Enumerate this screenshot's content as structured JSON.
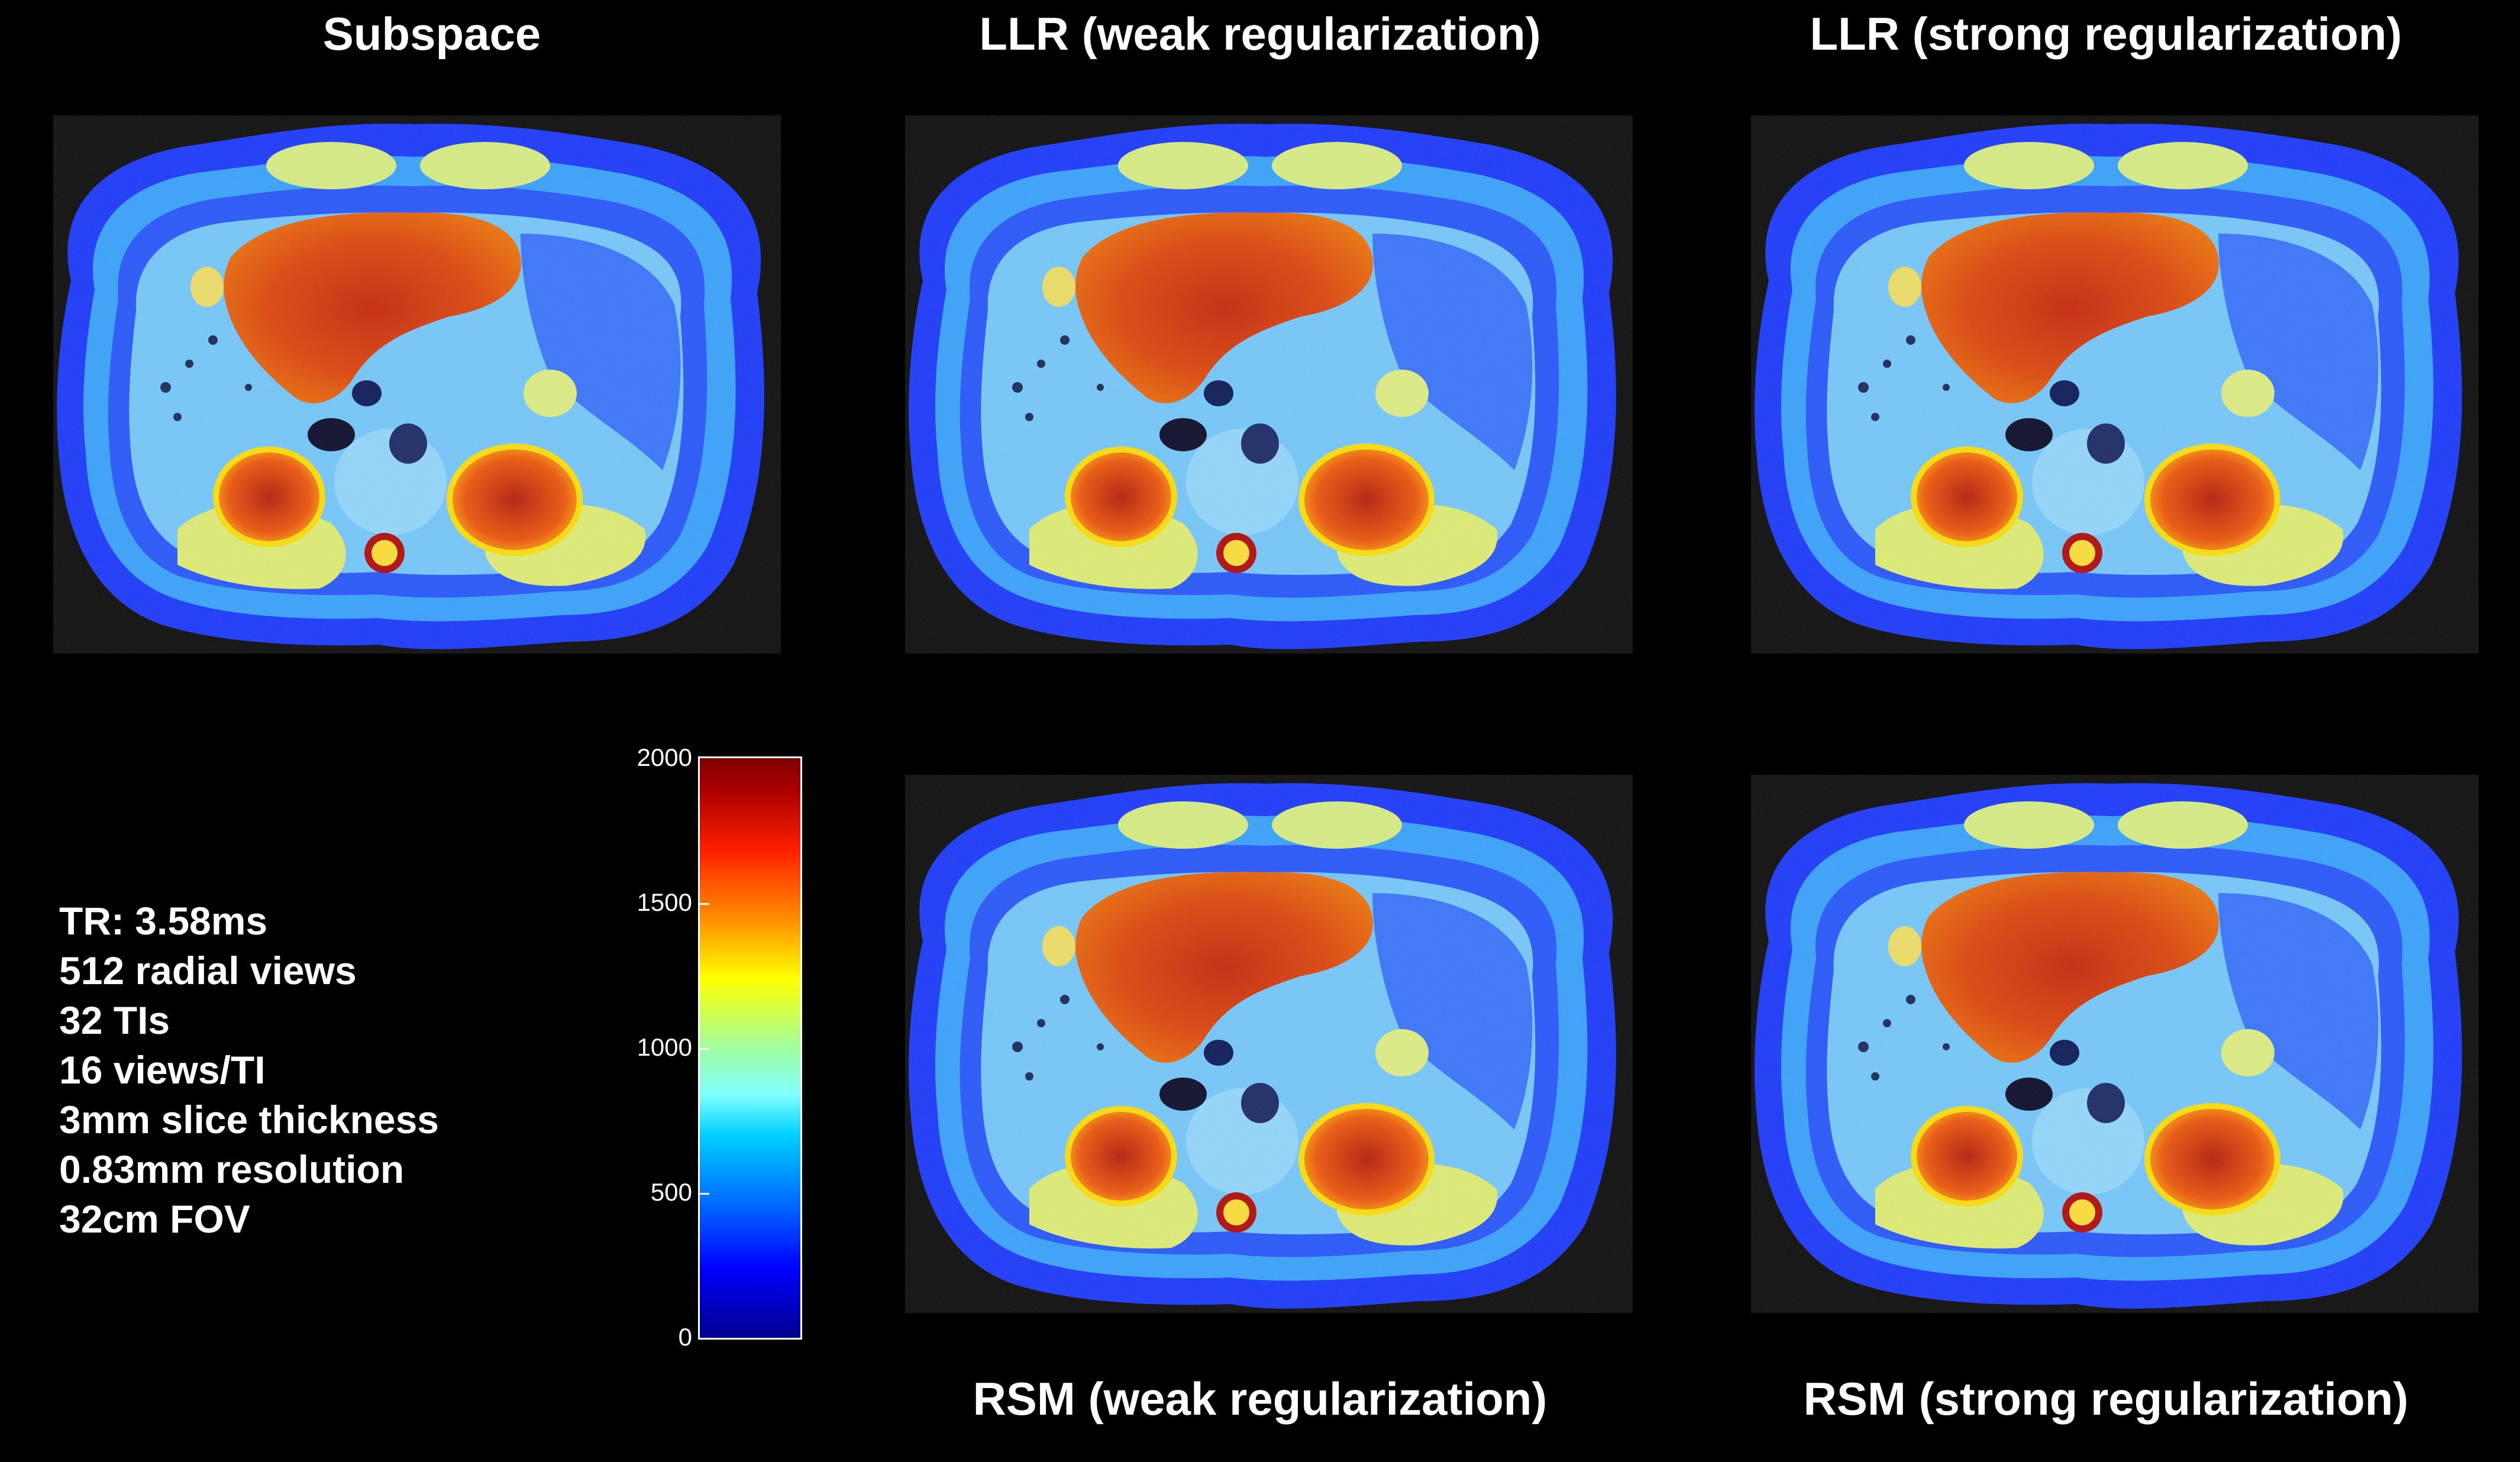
{
  "titles": {
    "top_left": "Subspace",
    "top_middle": "LLR (weak regularization)",
    "top_right": "LLR (strong regularization)",
    "bottom_middle": "RSM (weak regularization)",
    "bottom_right": "RSM (strong regularization)"
  },
  "params": [
    "TR: 3.58ms",
    "512 radial views",
    "32 TIs",
    "16 views/TI",
    "3mm slice thickness",
    "0.83mm resolution",
    "32cm FOV"
  ],
  "colorbar": {
    "ticks": [
      "2000",
      "1500",
      "1000",
      "500",
      "0"
    ],
    "min": 0,
    "max": 2000,
    "colormap": "jet"
  }
}
